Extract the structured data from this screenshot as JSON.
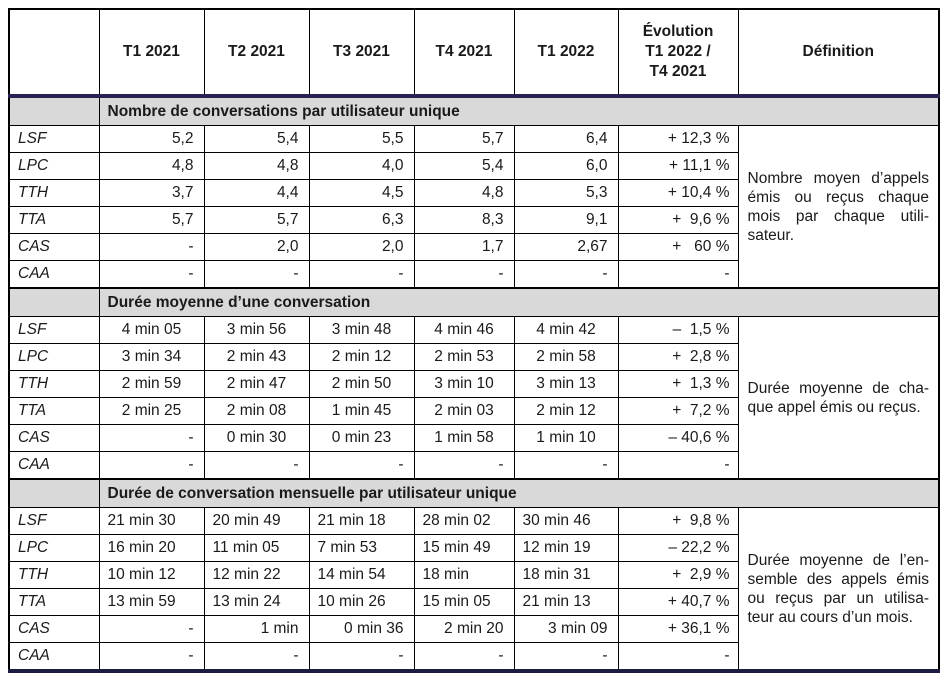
{
  "colors": {
    "header_rule": "#262350",
    "bottom_rule": "#1d1b3f",
    "section_header_bg": "#d9d9d9",
    "grid_border": "#000000",
    "text": "#1a1a1a"
  },
  "header": {
    "corner": "",
    "quarters": [
      "T1 2021",
      "T2 2021",
      "T3 2021",
      "T4 2021",
      "T1 2022"
    ],
    "evolution_lines": [
      "Évolution",
      "T1 2022 /",
      "T4 2021"
    ],
    "definition": "Définition"
  },
  "sections": [
    {
      "title": "Nombre de conversations par utilisateur unique",
      "value_align": "right",
      "definition_lines": [
        "Nombre moyen d’appels",
        "émis ou reçus chaque",
        "mois par chaque utili-",
        "sateur."
      ],
      "rows": [
        {
          "label": "LSF",
          "values": [
            "5,2",
            "5,4",
            "5,5",
            "5,7",
            "6,4"
          ],
          "evolution": "+ 12,3 %"
        },
        {
          "label": "LPC",
          "values": [
            "4,8",
            "4,8",
            "4,0",
            "5,4",
            "6,0"
          ],
          "evolution": "+ 11,1 %"
        },
        {
          "label": "TTH",
          "values": [
            "3,7",
            "4,4",
            "4,5",
            "4,8",
            "5,3"
          ],
          "evolution": "+ 10,4 %"
        },
        {
          "label": "TTA",
          "values": [
            "5,7",
            "5,7",
            "6,3",
            "8,3",
            "9,1"
          ],
          "evolution": "+  9,6 %"
        },
        {
          "label": "CAS",
          "values": [
            "-",
            "2,0",
            "2,0",
            "1,7",
            "2,67"
          ],
          "evolution": "+   60 %"
        },
        {
          "label": "CAA",
          "values": [
            "-",
            "-",
            "-",
            "-",
            "-"
          ],
          "evolution": "-"
        }
      ]
    },
    {
      "title": "Durée moyenne d’une conversation",
      "value_align": "center",
      "definition_lines": [
        "Durée moyenne de cha-",
        "que appel émis ou reçus."
      ],
      "rows": [
        {
          "label": "LSF",
          "values": [
            "4 min 05",
            "3 min 56",
            "3 min 48",
            "4 min 46",
            "4 min 42"
          ],
          "evolution": "–  1,5 %"
        },
        {
          "label": "LPC",
          "values": [
            "3 min 34",
            "2 min 43",
            "2 min 12",
            "2 min 53",
            "2 min 58"
          ],
          "evolution": "+  2,8 %"
        },
        {
          "label": "TTH",
          "values": [
            "2 min 59",
            "2 min 47",
            "2 min 50",
            "3 min 10",
            "3 min 13"
          ],
          "evolution": "+  1,3 %"
        },
        {
          "label": "TTA",
          "values": [
            "2 min 25",
            "2 min 08",
            "1 min 45",
            "2 min 03",
            "2 min 12"
          ],
          "evolution": "+  7,2 %"
        },
        {
          "label": "CAS",
          "values": [
            "-",
            "0 min 30",
            "0 min 23",
            "1 min 58",
            "1 min 10"
          ],
          "evolution": "– 40,6 %"
        },
        {
          "label": "CAA",
          "values": [
            "-",
            "-",
            "-",
            "-",
            "-"
          ],
          "evolution": "-"
        }
      ]
    },
    {
      "title": "Durée de conversation mensuelle par utilisateur unique",
      "value_align": "left",
      "definition_lines": [
        "Durée moyenne de l’en-",
        "semble des appels émis",
        "ou reçus par un utilisa-",
        "teur au cours d’un mois."
      ],
      "rows": [
        {
          "label": "LSF",
          "values": [
            "21 min 30",
            "20 min 49",
            "21 min 18",
            "28 min 02",
            "30 min 46"
          ],
          "evolution": "+  9,8 %"
        },
        {
          "label": "LPC",
          "values": [
            "16 min 20",
            "11 min 05",
            "7 min 53",
            "15 min 49",
            "12 min 19"
          ],
          "evolution": "– 22,2 %"
        },
        {
          "label": "TTH",
          "values": [
            "10 min 12",
            "12 min 22",
            "14 min 54",
            "18 min",
            "18 min 31"
          ],
          "evolution": "+  2,9 %"
        },
        {
          "label": "TTA",
          "values": [
            "13 min 59",
            "13 min 24",
            "10 min 26",
            "15 min 05",
            "21 min 13"
          ],
          "evolution": "+ 40,7 %"
        },
        {
          "label": "CAS",
          "align": "right",
          "values": [
            "-",
            "1 min",
            "0 min 36",
            "2 min 20",
            "3 min 09"
          ],
          "evolution": "+ 36,1 %"
        },
        {
          "label": "CAA",
          "values": [
            "-",
            "-",
            "-",
            "-",
            "-"
          ],
          "evolution": "-"
        }
      ]
    }
  ]
}
